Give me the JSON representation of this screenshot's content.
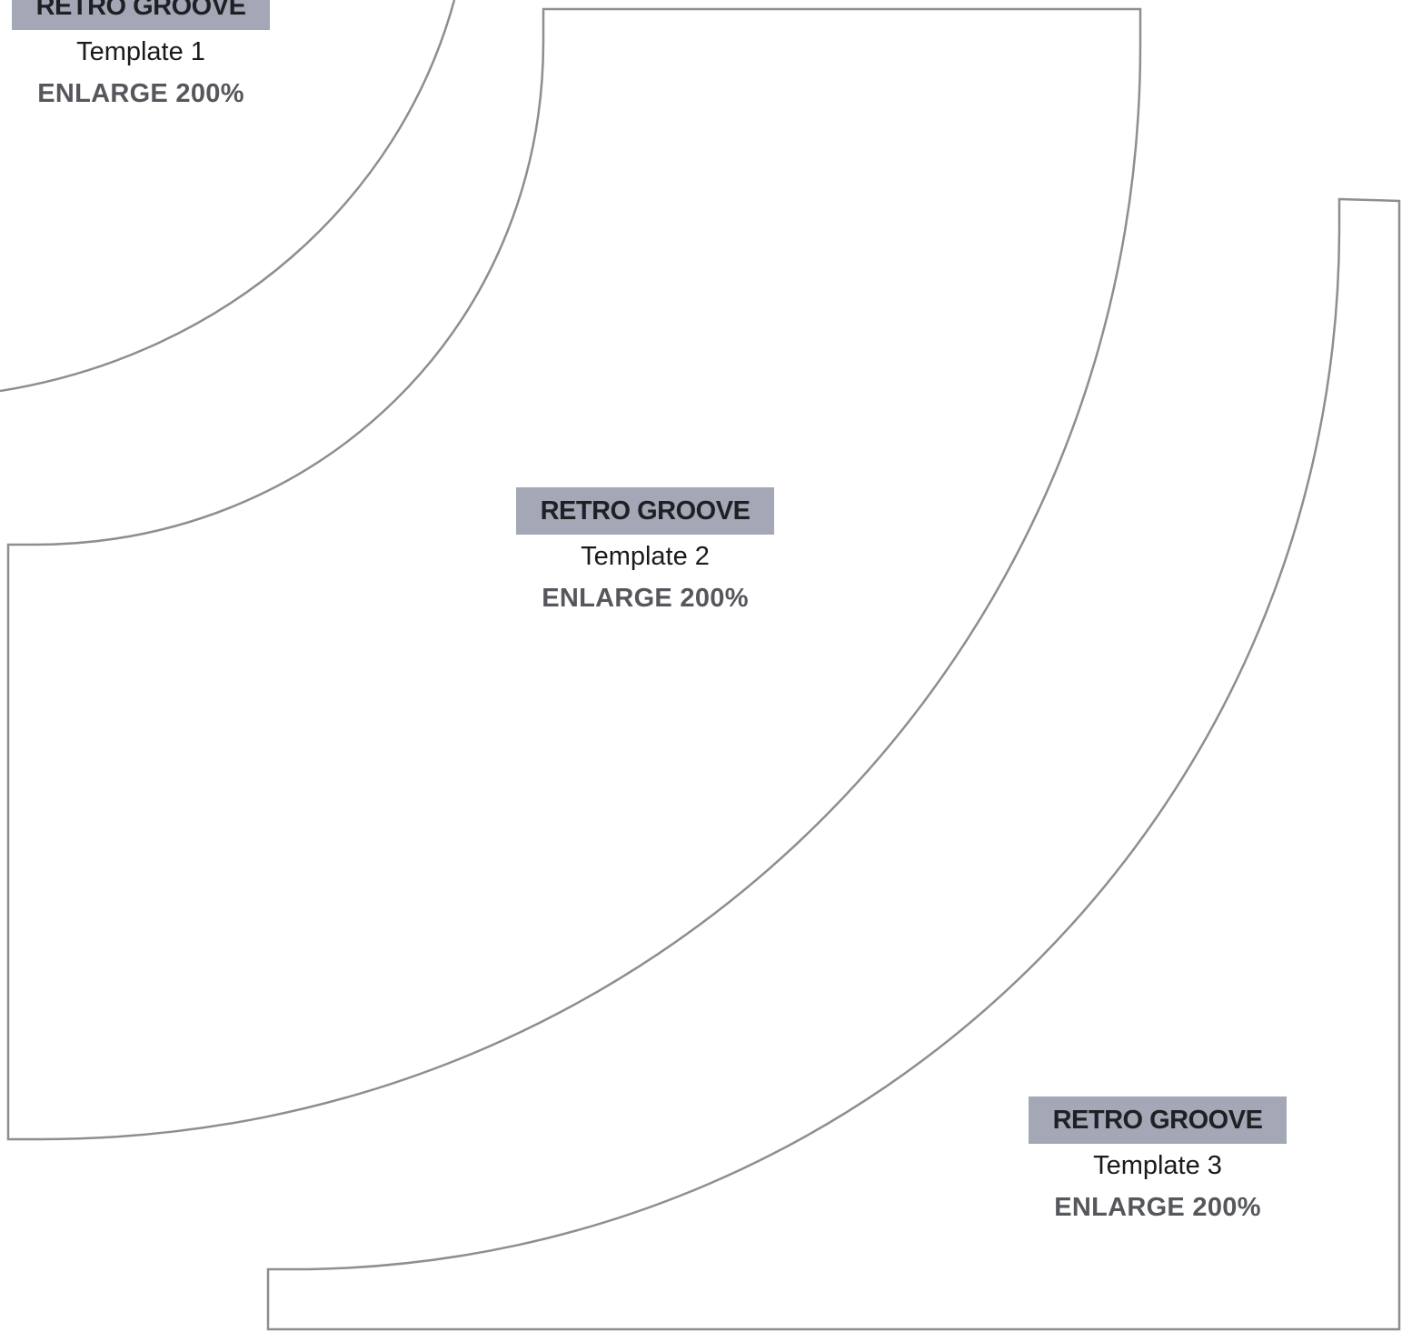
{
  "templates": [
    {
      "title": "RETRO GROOVE",
      "name": "Template 1",
      "scale": "ENLARGE 200%"
    },
    {
      "title": "RETRO GROOVE",
      "name": "Template 2",
      "scale": "ENLARGE 200%"
    },
    {
      "title": "RETRO GROOVE",
      "name": "Template 3",
      "scale": "ENLARGE 200%"
    }
  ],
  "colors": {
    "outline": "#8e8e8e",
    "label_band": "#a3a7b6",
    "title_text": "#1f2024",
    "scale_text": "#55575c"
  }
}
